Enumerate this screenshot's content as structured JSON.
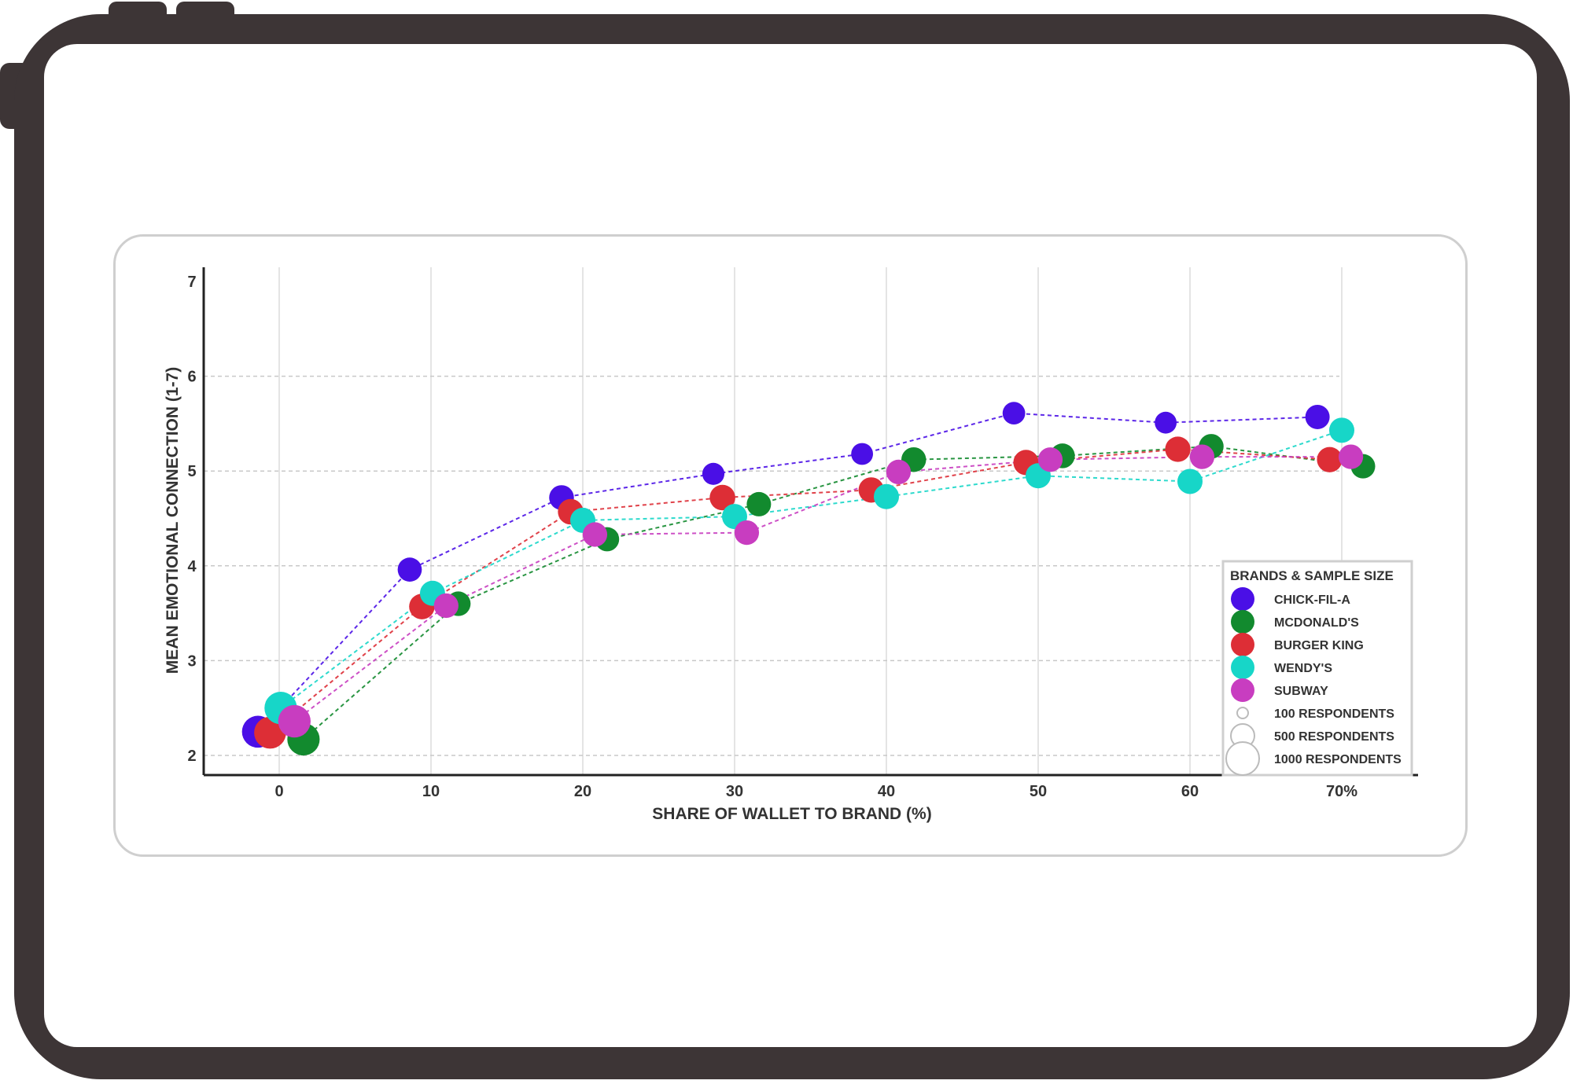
{
  "chart_data": {
    "type": "scatter",
    "title": "",
    "xlabel": "SHARE OF WALLET TO BRAND (%)",
    "ylabel": "MEAN EMOTIONAL CONNECTION (1-7)",
    "xlim": [
      -5,
      75
    ],
    "ylim": [
      1.8,
      7.1
    ],
    "x_ticks": [
      {
        "value": 0,
        "label": "0"
      },
      {
        "value": 10,
        "label": "10"
      },
      {
        "value": 20,
        "label": "20"
      },
      {
        "value": 30,
        "label": "30"
      },
      {
        "value": 40,
        "label": "40"
      },
      {
        "value": 50,
        "label": "50"
      },
      {
        "value": 60,
        "label": "60"
      },
      {
        "value": 70,
        "label": "70%"
      }
    ],
    "y_ticks": [
      {
        "value": 2,
        "label": "2"
      },
      {
        "value": 3,
        "label": "3"
      },
      {
        "value": 4,
        "label": "4"
      },
      {
        "value": 5,
        "label": "5"
      },
      {
        "value": 6,
        "label": "6"
      },
      {
        "value": 7,
        "label": "7"
      }
    ],
    "grid": true,
    "lines": "dashed",
    "legend": {
      "placement": "bottom-right",
      "title": "BRANDS & SAMPLE SIZE",
      "size_entries": [
        {
          "label": "100 RESPONDENTS",
          "respondents": 100
        },
        {
          "label": "500 RESPONDENTS",
          "respondents": 500
        },
        {
          "label": "1000 RESPONDENTS",
          "respondents": 1000
        }
      ]
    },
    "series": [
      {
        "name": "CHICK-FIL-A",
        "color": "#4a0fe6",
        "points": [
          {
            "x": -1.4,
            "y": 2.25,
            "n": 820
          },
          {
            "x": 8.6,
            "y": 3.96,
            "n": 350
          },
          {
            "x": 18.6,
            "y": 4.72,
            "n": 380
          },
          {
            "x": 28.6,
            "y": 4.97,
            "n": 260
          },
          {
            "x": 38.4,
            "y": 5.18,
            "n": 250
          },
          {
            "x": 48.4,
            "y": 5.61,
            "n": 280
          },
          {
            "x": 58.4,
            "y": 5.51,
            "n": 250
          },
          {
            "x": 68.4,
            "y": 5.57,
            "n": 360
          }
        ]
      },
      {
        "name": "MCDONALD'S",
        "color": "#128a2e",
        "points": [
          {
            "x": 1.6,
            "y": 2.17,
            "n": 850
          },
          {
            "x": 11.8,
            "y": 3.6,
            "n": 370
          },
          {
            "x": 21.6,
            "y": 4.28,
            "n": 350
          },
          {
            "x": 31.6,
            "y": 4.65,
            "n": 360
          },
          {
            "x": 41.8,
            "y": 5.12,
            "n": 380
          },
          {
            "x": 51.6,
            "y": 5.16,
            "n": 380
          },
          {
            "x": 61.4,
            "y": 5.26,
            "n": 380
          },
          {
            "x": 71.4,
            "y": 5.05,
            "n": 360
          }
        ]
      },
      {
        "name": "BURGER KING",
        "color": "#dd2e36",
        "points": [
          {
            "x": -0.6,
            "y": 2.24,
            "n": 820
          },
          {
            "x": 9.4,
            "y": 3.57,
            "n": 420
          },
          {
            "x": 19.2,
            "y": 4.57,
            "n": 420
          },
          {
            "x": 29.2,
            "y": 4.72,
            "n": 420
          },
          {
            "x": 39.0,
            "y": 4.8,
            "n": 410
          },
          {
            "x": 49.2,
            "y": 5.09,
            "n": 410
          },
          {
            "x": 59.2,
            "y": 5.23,
            "n": 410
          },
          {
            "x": 69.2,
            "y": 5.12,
            "n": 410
          }
        ]
      },
      {
        "name": "WENDY'S",
        "color": "#17d6c8",
        "points": [
          {
            "x": 0.1,
            "y": 2.5,
            "n": 860
          },
          {
            "x": 10.1,
            "y": 3.71,
            "n": 400
          },
          {
            "x": 20.0,
            "y": 4.48,
            "n": 400
          },
          {
            "x": 30.0,
            "y": 4.52,
            "n": 400
          },
          {
            "x": 40.0,
            "y": 4.73,
            "n": 400
          },
          {
            "x": 50.0,
            "y": 4.95,
            "n": 400
          },
          {
            "x": 60.0,
            "y": 4.89,
            "n": 400
          },
          {
            "x": 70.0,
            "y": 5.43,
            "n": 400
          }
        ]
      },
      {
        "name": "SUBWAY",
        "color": "#c83dc0",
        "points": [
          {
            "x": 1.0,
            "y": 2.36,
            "n": 860
          },
          {
            "x": 11.0,
            "y": 3.58,
            "n": 370
          },
          {
            "x": 20.8,
            "y": 4.33,
            "n": 370
          },
          {
            "x": 30.8,
            "y": 4.35,
            "n": 370
          },
          {
            "x": 40.8,
            "y": 4.99,
            "n": 370
          },
          {
            "x": 50.8,
            "y": 5.12,
            "n": 370
          },
          {
            "x": 60.8,
            "y": 5.15,
            "n": 370
          },
          {
            "x": 70.6,
            "y": 5.15,
            "n": 370
          }
        ]
      }
    ]
  }
}
